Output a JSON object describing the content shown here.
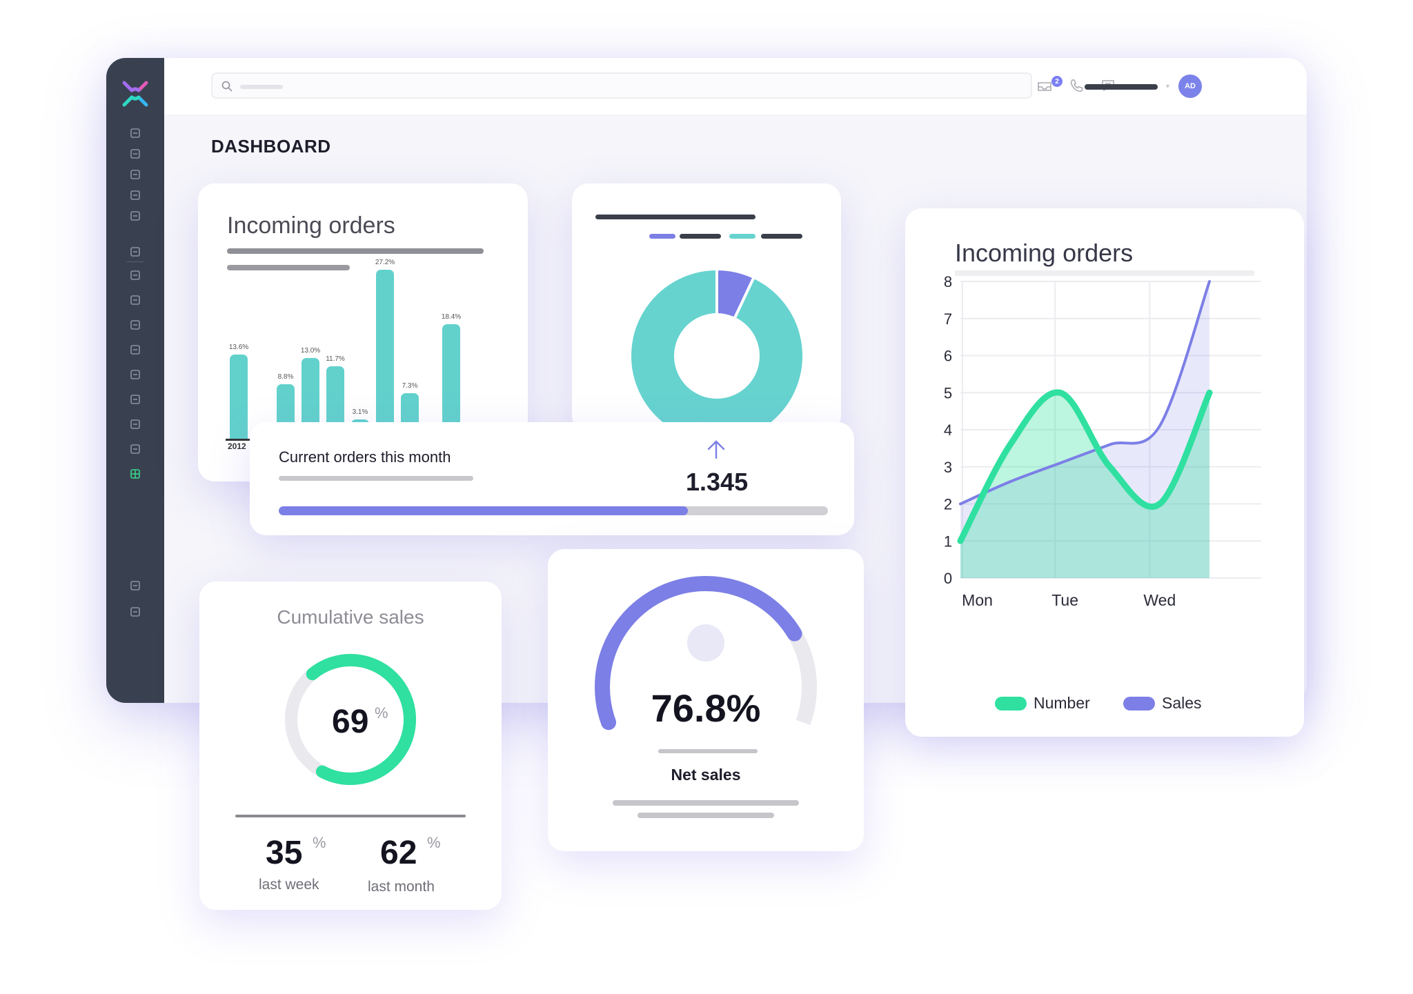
{
  "page": {
    "title": "DASHBOARD"
  },
  "topbar": {
    "notification_count": "2",
    "avatar_initials": "AD"
  },
  "sidebar": {
    "icons": [
      "download-icon",
      "edit-icon",
      "printer-icon",
      "calendar-icon",
      "apps-grid-icon",
      "layers-icon",
      "trending-up-icon",
      "basket-icon",
      "cart-icon",
      "bank-icon",
      "monitor-icon",
      "lightning-icon",
      "home-icon",
      "list-icon",
      "dashboard-icon",
      "settings-icon",
      "clock-icon"
    ]
  },
  "incoming_orders_bar": {
    "title": "Incoming orders",
    "bars": [
      {
        "label": "13.6%",
        "value": 13.6
      },
      {
        "label": "8.8%",
        "value": 8.8
      },
      {
        "label": "13.0%",
        "value": 13.0
      },
      {
        "label": "11.7%",
        "value": 11.7
      },
      {
        "label": "3.1%",
        "value": 3.1
      },
      {
        "label": "27.2%",
        "value": 27.2
      },
      {
        "label": "7.3%",
        "value": 7.3
      },
      {
        "label": "18.4%",
        "value": 18.4
      }
    ],
    "x_tick": "2012"
  },
  "current_orders": {
    "title": "Current orders this month",
    "value": "1.345",
    "progress": 0.745
  },
  "cumulative_sales": {
    "title": "Cumulative sales",
    "ring_value": "69",
    "ring_fraction": 0.69,
    "pct_sign": "%",
    "stats": [
      {
        "value": "35",
        "label": "last week"
      },
      {
        "value": "62",
        "label": "last month"
      }
    ]
  },
  "net_sales": {
    "value": "76.8%",
    "label": "Net sales",
    "fraction": 0.768
  },
  "donut": {
    "slices": [
      {
        "share": 0.93,
        "color": "#66d3cf"
      },
      {
        "share": 0.07,
        "color": "#7c7fe6"
      }
    ]
  },
  "chart_data": {
    "type": "area",
    "title": "Incoming orders",
    "categories": [
      "Mon",
      "Tue",
      "Wed"
    ],
    "ylim": [
      0,
      8
    ],
    "y_ticks": [
      "0",
      "1",
      "2",
      "3",
      "4",
      "5",
      "6",
      "7",
      "8"
    ],
    "series": [
      {
        "name": "Number",
        "color": "#2fe0a0",
        "x": [
          0,
          0.5,
          1,
          1.5,
          2,
          2.5
        ],
        "values": [
          1,
          3.6,
          5,
          3.0,
          2,
          5
        ]
      },
      {
        "name": "Sales",
        "color": "#7c7fe6",
        "x": [
          0,
          0.5,
          1,
          1.5,
          2,
          2.5
        ],
        "values": [
          2,
          2.6,
          3.1,
          3.6,
          4.1,
          8
        ]
      }
    ],
    "grid": true,
    "legend": "bottom"
  },
  "colors": {
    "teal": "#62d1cc",
    "green": "#2fe0a0",
    "indigo": "#7c7fe6",
    "sidebar": "#394150"
  }
}
